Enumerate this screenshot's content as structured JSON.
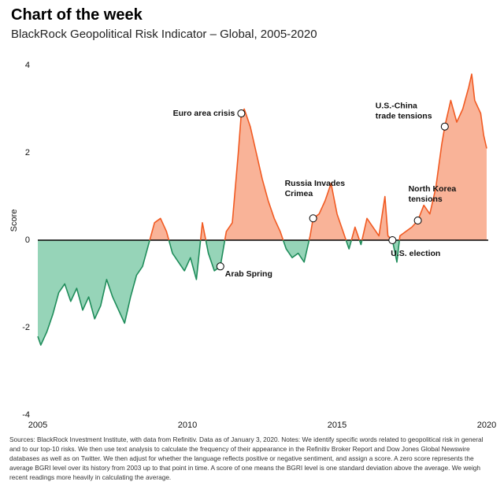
{
  "chart_data": {
    "type": "area",
    "title": "Chart of the week",
    "subtitle": "BlackRock Geopolitical Risk Indicator – Global, 2005-2020",
    "y_label": "Score",
    "positive_color": "#f15a22",
    "positive_fill": "#f9b398",
    "negative_color": "#1e8c5a",
    "negative_fill": "#96d4b8",
    "x": [
      2005.0,
      2005.1,
      2005.3,
      2005.5,
      2005.7,
      2005.9,
      2006.1,
      2006.3,
      2006.5,
      2006.7,
      2006.9,
      2007.1,
      2007.3,
      2007.5,
      2007.7,
      2007.9,
      2008.1,
      2008.3,
      2008.5,
      2008.7,
      2008.9,
      2009.1,
      2009.3,
      2009.5,
      2009.7,
      2009.9,
      2010.1,
      2010.3,
      2010.5,
      2010.7,
      2010.9,
      2011.1,
      2011.3,
      2011.5,
      2011.7,
      2011.8,
      2011.9,
      2012.1,
      2012.3,
      2012.5,
      2012.7,
      2012.9,
      2013.1,
      2013.3,
      2013.5,
      2013.7,
      2013.9,
      2014.1,
      2014.2,
      2014.4,
      2014.6,
      2014.8,
      2015.0,
      2015.2,
      2015.4,
      2015.6,
      2015.8,
      2016.0,
      2016.2,
      2016.4,
      2016.6,
      2016.7,
      2016.85,
      2017.0,
      2017.1,
      2017.3,
      2017.5,
      2017.7,
      2017.9,
      2018.1,
      2018.3,
      2018.5,
      2018.6,
      2018.8,
      2019.0,
      2019.2,
      2019.4,
      2019.5,
      2019.6,
      2019.8,
      2019.9,
      2020.0
    ],
    "values": [
      -2.2,
      -2.4,
      -2.1,
      -1.7,
      -1.2,
      -1.0,
      -1.4,
      -1.1,
      -1.6,
      -1.3,
      -1.8,
      -1.5,
      -0.9,
      -1.3,
      -1.6,
      -1.9,
      -1.3,
      -0.8,
      -0.6,
      -0.1,
      0.4,
      0.5,
      0.2,
      -0.3,
      -0.5,
      -0.7,
      -0.4,
      -0.9,
      0.4,
      -0.3,
      -0.7,
      -0.6,
      0.2,
      0.4,
      2.0,
      2.9,
      3.0,
      2.6,
      2.0,
      1.4,
      0.9,
      0.5,
      0.2,
      -0.2,
      -0.4,
      -0.3,
      -0.5,
      0.1,
      0.5,
      0.6,
      0.9,
      1.3,
      0.6,
      0.2,
      -0.2,
      0.3,
      -0.1,
      0.5,
      0.3,
      0.1,
      1.0,
      0.1,
      0.0,
      -0.5,
      0.1,
      0.2,
      0.3,
      0.45,
      0.8,
      0.6,
      1.2,
      2.2,
      2.6,
      3.2,
      2.7,
      3.0,
      3.5,
      3.8,
      3.2,
      2.9,
      2.4,
      2.1
    ],
    "xlim": [
      2005,
      2020
    ],
    "xticks": [
      2005,
      2010,
      2015,
      2020
    ],
    "ylim": [
      -4,
      4
    ],
    "yticks": [
      -4,
      -2,
      0,
      2,
      4
    ],
    "annotations": [
      {
        "text": [
          "Euro area crisis"
        ],
        "x": 2011.8,
        "y": 2.9
      },
      {
        "text": [
          "Arab Spring"
        ],
        "x": 2011.1,
        "y": -0.6
      },
      {
        "text": [
          "Russia Invades",
          "Crimea"
        ],
        "x": 2014.2,
        "y": 0.5
      },
      {
        "text": [
          "U.S. election"
        ],
        "x": 2016.85,
        "y": 0
      },
      {
        "text": [
          "North Korea",
          "tensions"
        ],
        "x": 2017.7,
        "y": 0.45
      },
      {
        "text": [
          "U.S.-China",
          "trade tensions"
        ],
        "x": 2018.6,
        "y": 2.6
      }
    ],
    "footnote": "Sources: BlackRock Investment Institute, with data from Refinitiv. Data as of January 3, 2020. Notes: We identify specific words related to geopolitical risk in general and to our top-10 risks. We then use text analysis to calculate the frequency of their appearance in the Refinitiv Broker Report and Dow Jones Global Newswire databases as well as on Twitter. We then adjust for whether the language reflects positive or negative sentiment, and assign a score. A zero score represents the average BGRI level over its history from 2003 up to that point in time. A score of one means the BGRI level is one standard deviation above the average. We weigh recent readings more heavily in calculating the average."
  }
}
